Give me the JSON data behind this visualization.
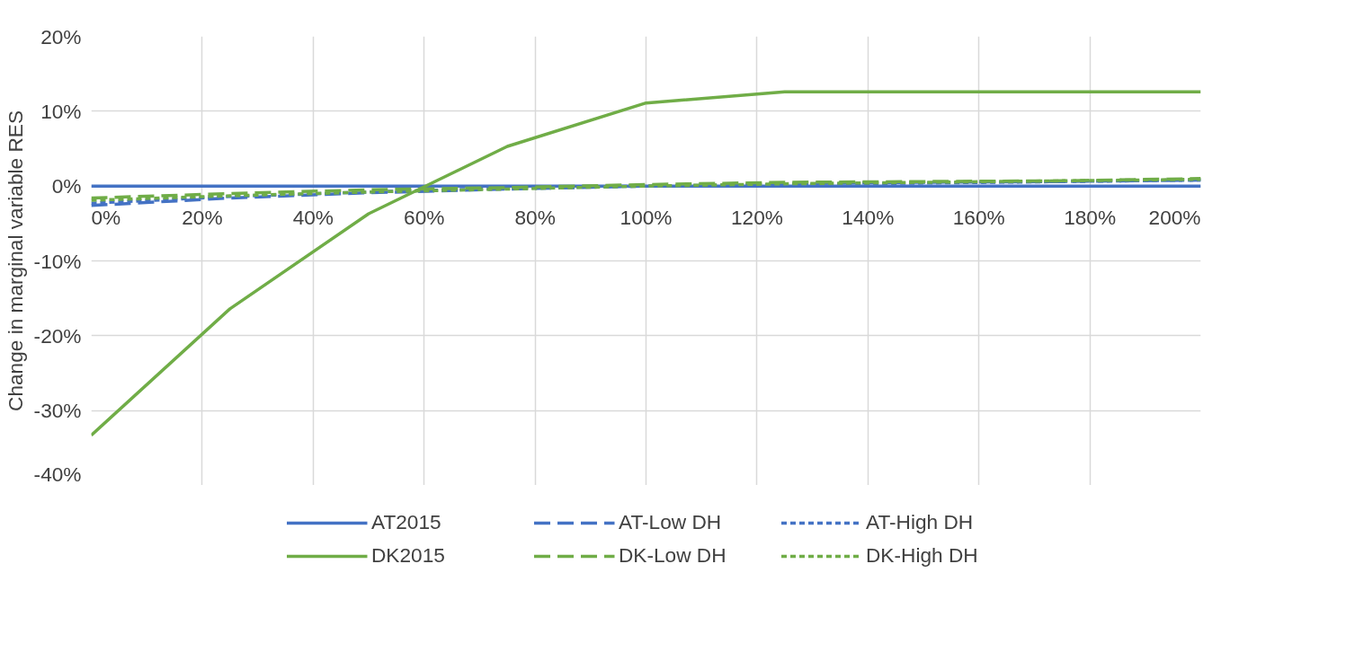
{
  "chart_data": {
    "type": "line",
    "ylabel": "Change in marginal variable RES",
    "x": [
      0,
      25,
      50,
      75,
      100,
      125,
      150,
      175,
      200
    ],
    "series": [
      {
        "name": "AT2015",
        "color": "#4472c4",
        "line_style": "solid",
        "values": [
          0,
          0,
          0,
          0,
          0,
          0,
          0,
          0,
          0
        ]
      },
      {
        "name": "AT-Low DH",
        "color": "#4472c4",
        "line_style": "dashed",
        "values": [
          -2.6,
          -1.6,
          -0.9,
          -0.4,
          0,
          0.3,
          0.5,
          0.6,
          0.8
        ]
      },
      {
        "name": "AT-High DH",
        "color": "#4472c4",
        "line_style": "dotted",
        "values": [
          -2.3,
          -1.4,
          -0.8,
          -0.3,
          0,
          0.2,
          0.4,
          0.6,
          0.8
        ]
      },
      {
        "name": "DK2015",
        "color": "#70ad47",
        "line_style": "solid",
        "values": [
          -33.3,
          -16.4,
          -3.7,
          5.3,
          11.1,
          12.6,
          12.6,
          12.6,
          12.6
        ]
      },
      {
        "name": "DK-Low DH",
        "color": "#70ad47",
        "line_style": "dashed",
        "values": [
          -1.6,
          -1.0,
          -0.5,
          -0.2,
          0.2,
          0.5,
          0.6,
          0.7,
          1.0
        ]
      },
      {
        "name": "DK-High DH",
        "color": "#70ad47",
        "line_style": "dotted",
        "values": [
          -1.9,
          -1.3,
          -0.8,
          -0.4,
          0,
          0.3,
          0.5,
          0.7,
          0.9
        ]
      }
    ],
    "xlim": [
      0,
      200
    ],
    "ylim": [
      -40,
      20
    ],
    "xticks": [
      {
        "value": 0,
        "label": "0%"
      },
      {
        "value": 20,
        "label": "20%"
      },
      {
        "value": 40,
        "label": "40%"
      },
      {
        "value": 60,
        "label": "60%"
      },
      {
        "value": 80,
        "label": "80%"
      },
      {
        "value": 100,
        "label": "100%"
      },
      {
        "value": 120,
        "label": "120%"
      },
      {
        "value": 140,
        "label": "140%"
      },
      {
        "value": 160,
        "label": "160%"
      },
      {
        "value": 180,
        "label": "180%"
      },
      {
        "value": 200,
        "label": "200%"
      }
    ],
    "yticks": [
      {
        "value": -40,
        "label": "-40%"
      },
      {
        "value": -30,
        "label": "-30%"
      },
      {
        "value": -20,
        "label": "-20%"
      },
      {
        "value": -10,
        "label": "-10%"
      },
      {
        "value": 0,
        "label": "0%"
      },
      {
        "value": 10,
        "label": "10%"
      },
      {
        "value": 20,
        "label": "20%"
      }
    ],
    "grid": true,
    "legend": "bottom"
  }
}
